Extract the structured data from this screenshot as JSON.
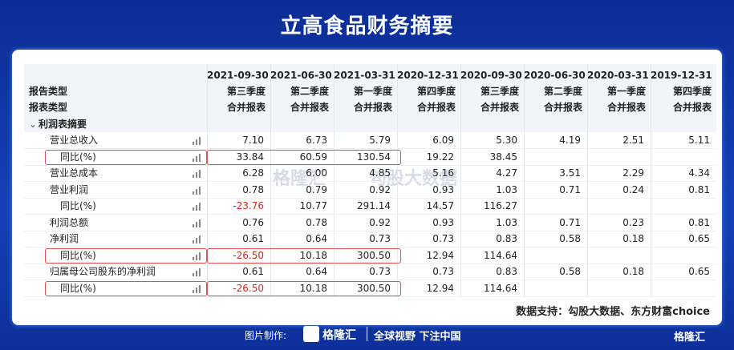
{
  "title": "立高食品财务摘要",
  "table": {
    "header": {
      "report_type_label": "报告类型",
      "statement_type_label": "报表类型",
      "dates": [
        "2021-09-30",
        "2021-06-30",
        "2021-03-31",
        "2020-12-31",
        "2020-09-30",
        "2020-06-30",
        "2020-03-31",
        "2019-12-31"
      ],
      "report_types": [
        "第三季度",
        "第二季度",
        "第一季度",
        "第四季度",
        "第三季度",
        "第二季度",
        "第一季度",
        "第四季度"
      ],
      "statement_types": [
        "合并报表",
        "合并报表",
        "合并报表",
        "合并报表",
        "合并报表",
        "合并报表",
        "合并报表",
        "合并报表"
      ]
    },
    "section": "利润表摘要",
    "rows": [
      {
        "label": "营业总收入",
        "level": 1,
        "cells": [
          "7.10",
          "6.73",
          "5.79",
          "6.09",
          "5.30",
          "4.19",
          "2.51",
          "5.11"
        ]
      },
      {
        "label": "同比(%)",
        "level": 2,
        "highlighted": true,
        "cells": [
          "33.84",
          "60.59",
          "130.54",
          "19.22",
          "38.45",
          null,
          null,
          null
        ]
      },
      {
        "label": "营业总成本",
        "level": 1,
        "cells": [
          "6.28",
          "6.00",
          "4.85",
          "5.16",
          "4.27",
          "3.51",
          "2.29",
          "4.34"
        ]
      },
      {
        "label": "营业利润",
        "level": 1,
        "cells": [
          "0.78",
          "0.79",
          "0.92",
          "0.93",
          "1.03",
          "0.71",
          "0.24",
          "0.81"
        ]
      },
      {
        "label": "同比(%)",
        "level": 2,
        "cells": [
          "-23.76",
          "10.77",
          "291.14",
          "14.57",
          "116.27",
          null,
          null,
          null
        ]
      },
      {
        "label": "利润总额",
        "level": 1,
        "cells": [
          "0.76",
          "0.78",
          "0.92",
          "0.93",
          "1.03",
          "0.71",
          "0.23",
          "0.81"
        ]
      },
      {
        "label": "净利润",
        "level": 1,
        "cells": [
          "0.61",
          "0.64",
          "0.73",
          "0.73",
          "0.83",
          "0.58",
          "0.18",
          "0.65"
        ]
      },
      {
        "label": "同比(%)",
        "level": 2,
        "highlighted": true,
        "cells": [
          "-26.50",
          "10.18",
          "300.50",
          "12.94",
          "114.64",
          null,
          null,
          null
        ]
      },
      {
        "label": "归属母公司股东的净利润",
        "level": 1,
        "cells": [
          "0.61",
          "0.64",
          "0.73",
          "0.73",
          "0.83",
          "0.58",
          "0.18",
          "0.65"
        ]
      },
      {
        "label": "同比(%)",
        "level": 2,
        "highlighted": true,
        "cells": [
          "-26.50",
          "10.18",
          "300.50",
          "12.94",
          "114.64",
          null,
          null,
          null
        ]
      }
    ]
  },
  "watermarks": [
    "格隆汇",
    "勾股大数据"
  ],
  "source": "数据支持：勾股大数据、东方财富choice",
  "footer": {
    "made_by": "图片制作:",
    "brand": "格隆汇",
    "slogan": "全球视野 下注中国",
    "corner_brand": "格隆汇"
  }
}
